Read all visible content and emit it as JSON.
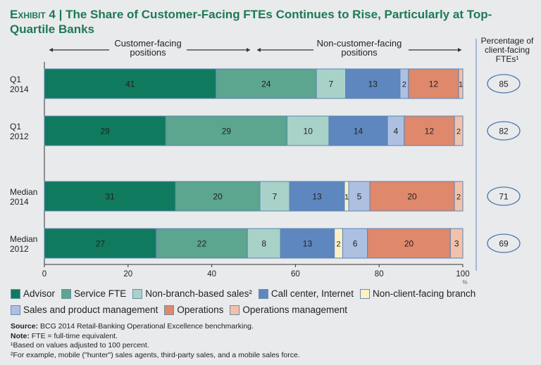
{
  "title": {
    "exhibit": "Exhibit 4",
    "separator": "|",
    "text": "The Share of Customer-Facing FTEs Continues to Rise, Particularly at Top-Quartile Banks"
  },
  "headers": {
    "customer": [
      "Customer-facing",
      "positions"
    ],
    "noncustomer": [
      "Non-customer-facing",
      "positions"
    ],
    "pct": [
      "Percentage of",
      "client-facing",
      "FTEs¹"
    ]
  },
  "chart_data": {
    "type": "bar",
    "orientation": "horizontal-stacked-100",
    "categories": [
      "Q1 2014",
      "Q1 2012",
      "Median 2014",
      "Median 2012"
    ],
    "category_lines": [
      [
        "Q1",
        "2014"
      ],
      [
        "Q1",
        "2012"
      ],
      [
        "Median",
        "2014"
      ],
      [
        "Median",
        "2012"
      ]
    ],
    "series": [
      {
        "name": "Advisor",
        "color": "#107a5e",
        "values": [
          41,
          29,
          31,
          27
        ]
      },
      {
        "name": "Service FTE",
        "color": "#5ca58e",
        "values": [
          24,
          29,
          20,
          22
        ]
      },
      {
        "name": "Non-branch-based sales²",
        "color": "#a8d2c7",
        "values": [
          7,
          10,
          7,
          8
        ]
      },
      {
        "name": "Call center, Internet",
        "color": "#5e87bf",
        "values": [
          13,
          14,
          13,
          13
        ]
      },
      {
        "name": "Non-client-facing branch",
        "color": "#fcf1c5",
        "values": [
          0,
          0,
          1,
          2
        ]
      },
      {
        "name": "Sales and product management",
        "color": "#adc0e2",
        "values": [
          2,
          4,
          5,
          6
        ]
      },
      {
        "name": "Operations",
        "color": "#df886c",
        "values": [
          12,
          12,
          20,
          20
        ]
      },
      {
        "name": "Operations management",
        "color": "#f3c1aa",
        "values": [
          1,
          2,
          2,
          3
        ]
      }
    ],
    "client_facing_pct": [
      85,
      82,
      71,
      69
    ],
    "xlim": [
      0,
      100
    ],
    "xticks": [
      0,
      20,
      40,
      60,
      80,
      100
    ],
    "xunit": "%",
    "legend_placement": "bottom"
  },
  "legend_rows": [
    [
      0,
      1,
      2,
      3,
      4
    ],
    [
      5,
      6,
      7
    ]
  ],
  "notes": {
    "source_label": "Source:",
    "source": " BCG 2014 Retail-Banking Operational Excellence benchmarking.",
    "note_label": "Note:",
    "note": " FTE = full-time equivalent.",
    "fn1": "¹Based on values adjusted to 100 percent.",
    "fn2": "²For example, mobile (\"hunter\") sales agents, third-party sales, and a mobile sales force."
  }
}
